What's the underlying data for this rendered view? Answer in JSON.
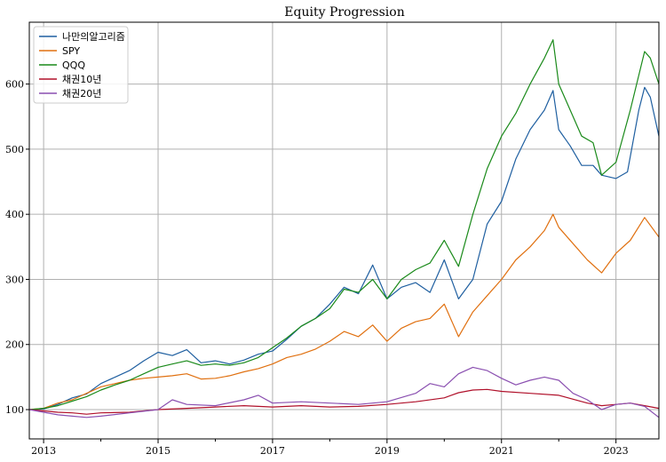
{
  "chart_data": {
    "type": "line",
    "title": "Equity Progression",
    "xlabel": "",
    "ylabel": "",
    "xlim": [
      2012.75,
      2023.75
    ],
    "ylim": [
      55,
      695
    ],
    "x_ticks": [
      2013,
      2015,
      2017,
      2019,
      2021,
      2023
    ],
    "x_minor_ticks": [
      2014,
      2016,
      2018,
      2020,
      2022
    ],
    "y_ticks": [
      100,
      200,
      300,
      400,
      500,
      600
    ],
    "grid": true,
    "legend_position": "top-left",
    "series": [
      {
        "name": "나만의알고리즘",
        "color": "#1f5fa0",
        "points": [
          [
            2012.75,
            100
          ],
          [
            2013.0,
            101
          ],
          [
            2013.25,
            108
          ],
          [
            2013.5,
            118
          ],
          [
            2013.75,
            124
          ],
          [
            2014.0,
            140
          ],
          [
            2014.25,
            150
          ],
          [
            2014.5,
            160
          ],
          [
            2014.75,
            175
          ],
          [
            2015.0,
            188
          ],
          [
            2015.25,
            183
          ],
          [
            2015.5,
            192
          ],
          [
            2015.75,
            172
          ],
          [
            2016.0,
            175
          ],
          [
            2016.25,
            170
          ],
          [
            2016.5,
            176
          ],
          [
            2016.75,
            185
          ],
          [
            2017.0,
            190
          ],
          [
            2017.25,
            208
          ],
          [
            2017.5,
            228
          ],
          [
            2017.75,
            240
          ],
          [
            2018.0,
            262
          ],
          [
            2018.25,
            288
          ],
          [
            2018.5,
            278
          ],
          [
            2018.75,
            322
          ],
          [
            2019.0,
            270
          ],
          [
            2019.25,
            288
          ],
          [
            2019.5,
            295
          ],
          [
            2019.75,
            280
          ],
          [
            2020.0,
            330
          ],
          [
            2020.25,
            270
          ],
          [
            2020.5,
            300
          ],
          [
            2020.75,
            385
          ],
          [
            2021.0,
            420
          ],
          [
            2021.25,
            485
          ],
          [
            2021.5,
            530
          ],
          [
            2021.75,
            560
          ],
          [
            2021.9,
            590
          ],
          [
            2022.0,
            530
          ],
          [
            2022.2,
            505
          ],
          [
            2022.4,
            475
          ],
          [
            2022.6,
            475
          ],
          [
            2022.75,
            460
          ],
          [
            2023.0,
            455
          ],
          [
            2023.2,
            465
          ],
          [
            2023.4,
            560
          ],
          [
            2023.5,
            595
          ],
          [
            2023.6,
            580
          ],
          [
            2023.75,
            520
          ]
        ]
      },
      {
        "name": "SPY",
        "color": "#e07010",
        "points": [
          [
            2012.75,
            100
          ],
          [
            2013.0,
            102
          ],
          [
            2013.25,
            110
          ],
          [
            2013.5,
            115
          ],
          [
            2013.75,
            125
          ],
          [
            2014.0,
            135
          ],
          [
            2014.25,
            140
          ],
          [
            2014.5,
            145
          ],
          [
            2014.75,
            148
          ],
          [
            2015.0,
            150
          ],
          [
            2015.25,
            152
          ],
          [
            2015.5,
            155
          ],
          [
            2015.75,
            147
          ],
          [
            2016.0,
            148
          ],
          [
            2016.25,
            152
          ],
          [
            2016.5,
            158
          ],
          [
            2016.75,
            163
          ],
          [
            2017.0,
            170
          ],
          [
            2017.25,
            180
          ],
          [
            2017.5,
            185
          ],
          [
            2017.75,
            193
          ],
          [
            2018.0,
            205
          ],
          [
            2018.25,
            220
          ],
          [
            2018.5,
            212
          ],
          [
            2018.75,
            230
          ],
          [
            2019.0,
            205
          ],
          [
            2019.25,
            225
          ],
          [
            2019.5,
            235
          ],
          [
            2019.75,
            240
          ],
          [
            2020.0,
            262
          ],
          [
            2020.25,
            212
          ],
          [
            2020.5,
            250
          ],
          [
            2020.75,
            275
          ],
          [
            2021.0,
            300
          ],
          [
            2021.25,
            330
          ],
          [
            2021.5,
            350
          ],
          [
            2021.75,
            375
          ],
          [
            2021.9,
            400
          ],
          [
            2022.0,
            380
          ],
          [
            2022.25,
            355
          ],
          [
            2022.5,
            330
          ],
          [
            2022.75,
            310
          ],
          [
            2023.0,
            340
          ],
          [
            2023.25,
            360
          ],
          [
            2023.5,
            395
          ],
          [
            2023.75,
            365
          ]
        ]
      },
      {
        "name": "QQQ",
        "color": "#1a8a1a",
        "points": [
          [
            2012.75,
            100
          ],
          [
            2013.0,
            102
          ],
          [
            2013.25,
            106
          ],
          [
            2013.5,
            113
          ],
          [
            2013.75,
            120
          ],
          [
            2014.0,
            130
          ],
          [
            2014.25,
            138
          ],
          [
            2014.5,
            145
          ],
          [
            2014.75,
            155
          ],
          [
            2015.0,
            165
          ],
          [
            2015.25,
            170
          ],
          [
            2015.5,
            175
          ],
          [
            2015.75,
            168
          ],
          [
            2016.0,
            170
          ],
          [
            2016.25,
            168
          ],
          [
            2016.5,
            172
          ],
          [
            2016.75,
            180
          ],
          [
            2017.0,
            195
          ],
          [
            2017.25,
            210
          ],
          [
            2017.5,
            228
          ],
          [
            2017.75,
            240
          ],
          [
            2018.0,
            255
          ],
          [
            2018.25,
            285
          ],
          [
            2018.5,
            280
          ],
          [
            2018.75,
            300
          ],
          [
            2019.0,
            270
          ],
          [
            2019.25,
            300
          ],
          [
            2019.5,
            315
          ],
          [
            2019.75,
            325
          ],
          [
            2020.0,
            360
          ],
          [
            2020.25,
            320
          ],
          [
            2020.5,
            400
          ],
          [
            2020.75,
            470
          ],
          [
            2021.0,
            520
          ],
          [
            2021.25,
            555
          ],
          [
            2021.5,
            600
          ],
          [
            2021.75,
            640
          ],
          [
            2021.9,
            668
          ],
          [
            2022.0,
            600
          ],
          [
            2022.2,
            560
          ],
          [
            2022.4,
            520
          ],
          [
            2022.6,
            510
          ],
          [
            2022.75,
            460
          ],
          [
            2023.0,
            480
          ],
          [
            2023.25,
            560
          ],
          [
            2023.5,
            650
          ],
          [
            2023.6,
            640
          ],
          [
            2023.75,
            600
          ]
        ]
      },
      {
        "name": "채권10년",
        "color": "#b0102a",
        "points": [
          [
            2012.75,
            100
          ],
          [
            2013.0,
            98
          ],
          [
            2013.25,
            96
          ],
          [
            2013.5,
            95
          ],
          [
            2013.75,
            93
          ],
          [
            2014.0,
            95
          ],
          [
            2014.5,
            96
          ],
          [
            2015.0,
            100
          ],
          [
            2015.5,
            102
          ],
          [
            2016.0,
            104
          ],
          [
            2016.5,
            106
          ],
          [
            2017.0,
            104
          ],
          [
            2017.5,
            106
          ],
          [
            2018.0,
            104
          ],
          [
            2018.5,
            105
          ],
          [
            2019.0,
            108
          ],
          [
            2019.5,
            112
          ],
          [
            2020.0,
            118
          ],
          [
            2020.25,
            126
          ],
          [
            2020.5,
            130
          ],
          [
            2020.75,
            131
          ],
          [
            2021.0,
            128
          ],
          [
            2021.5,
            125
          ],
          [
            2022.0,
            122
          ],
          [
            2022.25,
            116
          ],
          [
            2022.5,
            110
          ],
          [
            2022.75,
            106
          ],
          [
            2023.0,
            108
          ],
          [
            2023.25,
            110
          ],
          [
            2023.5,
            106
          ],
          [
            2023.75,
            102
          ]
        ]
      },
      {
        "name": "채권20년",
        "color": "#8a4fb0",
        "points": [
          [
            2012.75,
            100
          ],
          [
            2013.0,
            96
          ],
          [
            2013.25,
            92
          ],
          [
            2013.5,
            90
          ],
          [
            2013.75,
            88
          ],
          [
            2014.0,
            90
          ],
          [
            2014.5,
            95
          ],
          [
            2015.0,
            100
          ],
          [
            2015.25,
            115
          ],
          [
            2015.5,
            108
          ],
          [
            2016.0,
            106
          ],
          [
            2016.5,
            115
          ],
          [
            2016.75,
            122
          ],
          [
            2017.0,
            110
          ],
          [
            2017.5,
            112
          ],
          [
            2018.0,
            110
          ],
          [
            2018.5,
            108
          ],
          [
            2019.0,
            112
          ],
          [
            2019.5,
            125
          ],
          [
            2019.75,
            140
          ],
          [
            2020.0,
            135
          ],
          [
            2020.25,
            155
          ],
          [
            2020.5,
            165
          ],
          [
            2020.75,
            160
          ],
          [
            2021.0,
            148
          ],
          [
            2021.25,
            138
          ],
          [
            2021.5,
            145
          ],
          [
            2021.75,
            150
          ],
          [
            2022.0,
            145
          ],
          [
            2022.25,
            125
          ],
          [
            2022.5,
            115
          ],
          [
            2022.75,
            100
          ],
          [
            2023.0,
            108
          ],
          [
            2023.25,
            110
          ],
          [
            2023.5,
            105
          ],
          [
            2023.75,
            88
          ]
        ]
      }
    ]
  }
}
